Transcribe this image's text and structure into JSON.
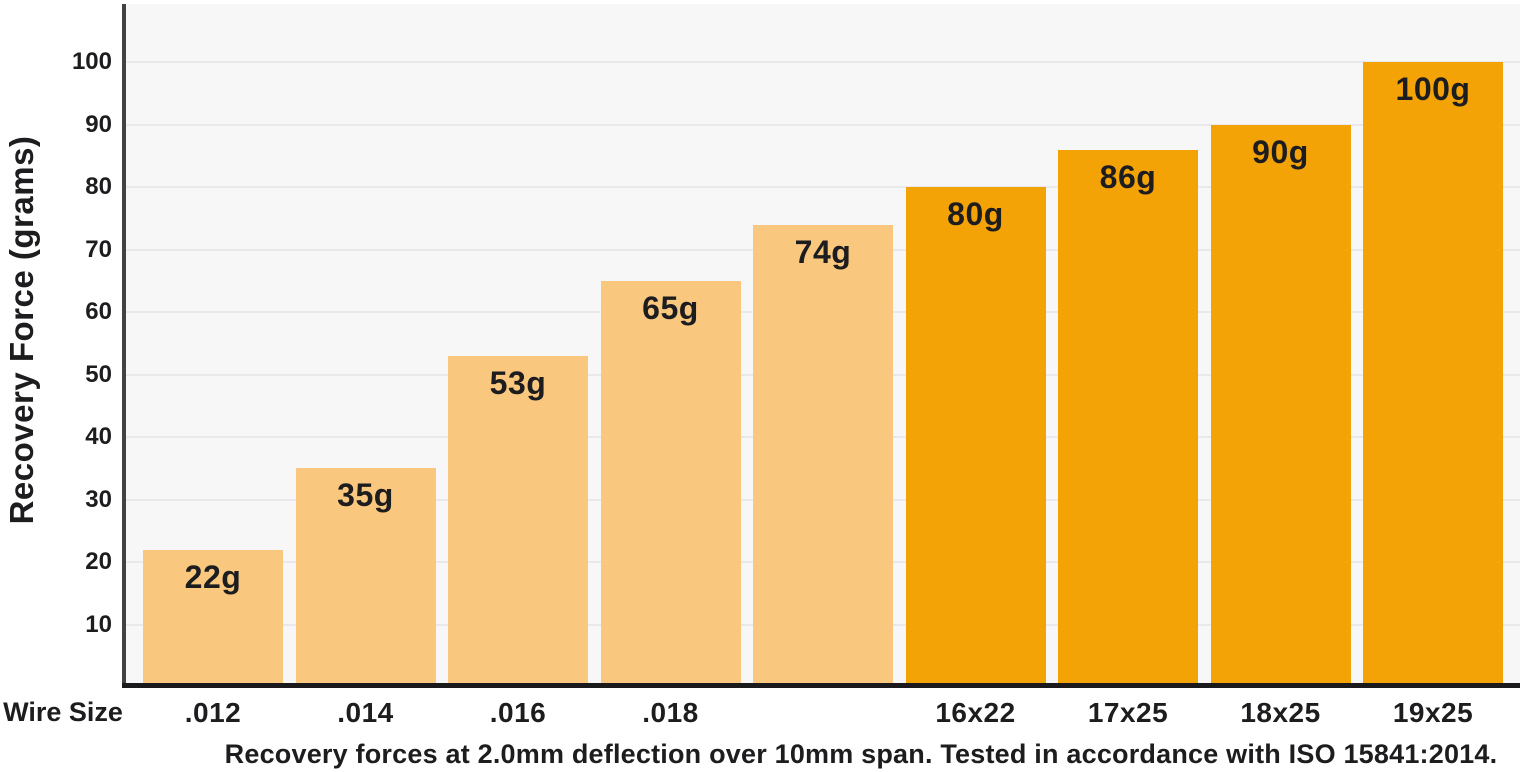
{
  "chart_data": {
    "type": "bar",
    "title": "",
    "xlabel": "Wire Size",
    "ylabel": "Recovery Force (grams)",
    "caption": "Recovery forces at 2.0mm deflection over 10mm span. Tested in accordance with ISO 15841:2014.",
    "categories": [
      ".012",
      ".014",
      ".016",
      ".018",
      "",
      "16x22",
      "17x25",
      "18x25",
      "19x25"
    ],
    "values": [
      22,
      35,
      53,
      65,
      74,
      80,
      86,
      90,
      100
    ],
    "bar_labels": [
      "22g",
      "35g",
      "53g",
      "65g",
      "74g",
      "80g",
      "86g",
      "90g",
      "100g"
    ],
    "bar_colors": [
      "#F9C87E",
      "#F9C87E",
      "#F9C87E",
      "#F9C87E",
      "#F9C87E",
      "#F4A306",
      "#F4A306",
      "#F4A306",
      "#F4A306"
    ],
    "ylim": [
      0,
      100
    ],
    "yticks": [
      10,
      20,
      30,
      40,
      50,
      60,
      70,
      80,
      90,
      100
    ],
    "grid": true,
    "legend_position": "none",
    "colors": {
      "light_bar": "#F9C87E",
      "dark_bar": "#F4A306",
      "plot_background": "#F7F7F8",
      "gridline": "#E9E9EC",
      "y_axis_line": "#424245",
      "x_baseline": "#1A1A1C",
      "text": "#1D1D1F"
    }
  }
}
